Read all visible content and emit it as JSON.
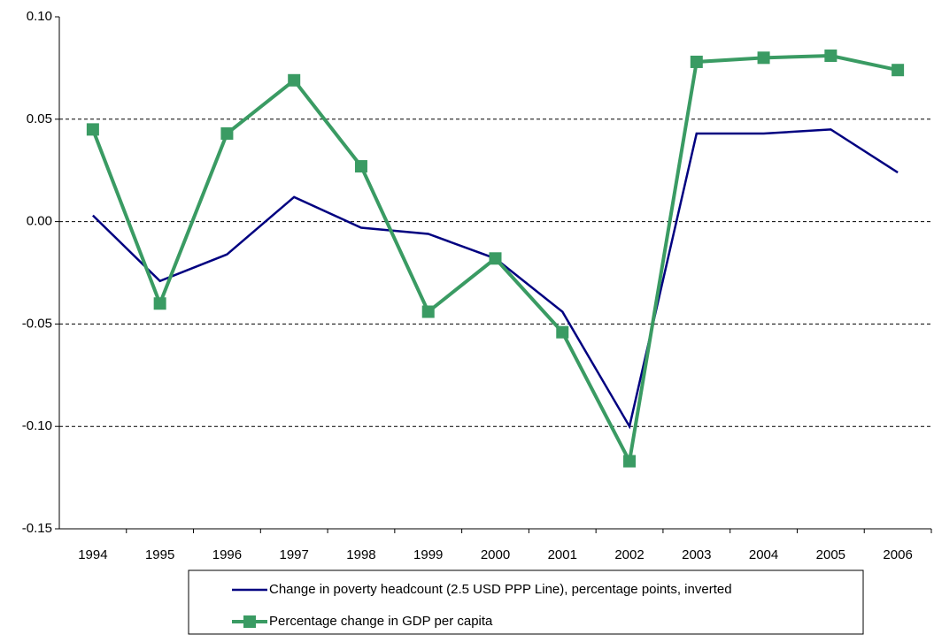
{
  "chart_data": {
    "type": "line",
    "categories": [
      "1994",
      "1995",
      "1996",
      "1997",
      "1998",
      "1999",
      "2000",
      "2001",
      "2002",
      "2003",
      "2004",
      "2005",
      "2006"
    ],
    "series": [
      {
        "name": "Change in poverty headcount (2.5 USD PPP Line), percentage points, inverted",
        "color": "#000080",
        "values": [
          0.003,
          -0.029,
          -0.016,
          0.012,
          -0.003,
          -0.006,
          -0.018,
          -0.044,
          -0.1,
          0.043,
          0.043,
          0.045,
          0.024
        ]
      },
      {
        "name": "Percentage change in GDP per capita",
        "color": "#3a9b63",
        "marker": "square",
        "values": [
          0.045,
          -0.04,
          0.043,
          0.069,
          0.027,
          -0.044,
          -0.018,
          -0.054,
          -0.117,
          0.078,
          0.08,
          0.081,
          0.074
        ]
      }
    ],
    "ylim": [
      -0.15,
      0.1
    ],
    "yticks": [
      {
        "value": -0.15,
        "label": "-0.15"
      },
      {
        "value": -0.1,
        "label": "-0.10"
      },
      -0.05,
      {
        "value": 0,
        "label": "0.00"
      },
      0.05,
      {
        "value": 0.1,
        "label": "0.10"
      }
    ],
    "grid": true,
    "legend": "bottom"
  }
}
